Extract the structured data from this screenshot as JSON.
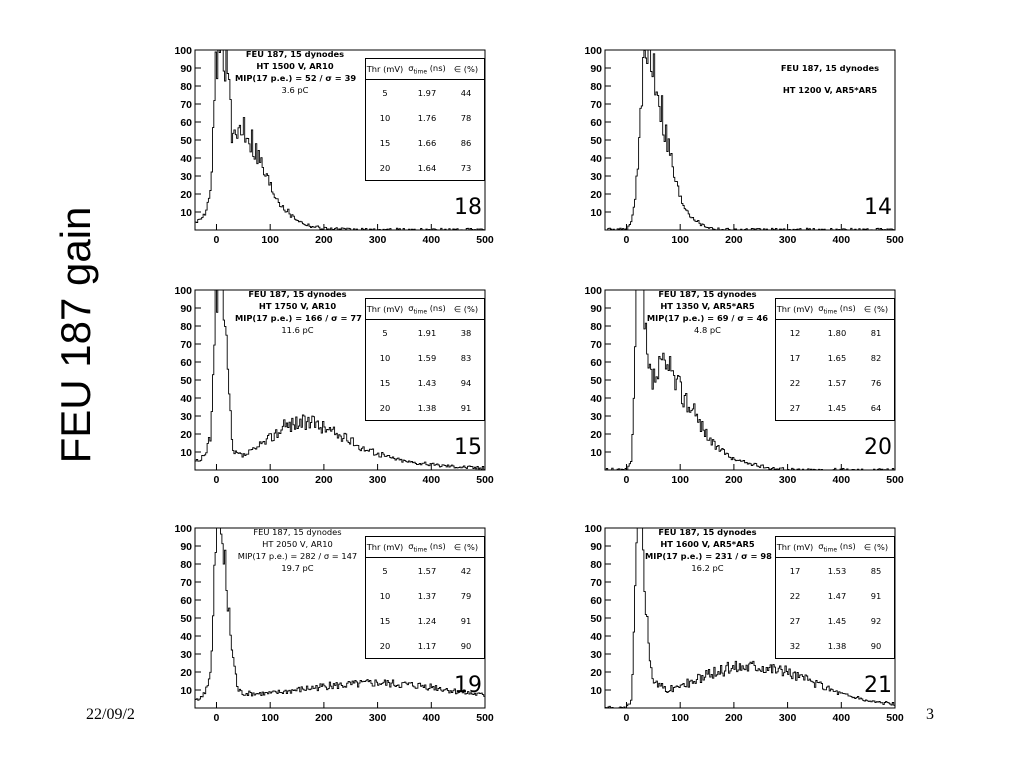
{
  "side_title": "FEU 187 gain",
  "footer": {
    "date": "22/09/2",
    "page": "3"
  },
  "axes": {
    "x_ticks": [
      "0",
      "100",
      "200",
      "300",
      "400",
      "500"
    ],
    "y_ticks": [
      "10",
      "20",
      "30",
      "40",
      "50",
      "60",
      "70",
      "80",
      "90",
      "100"
    ],
    "xlim": [
      -40,
      500
    ],
    "ylim": [
      0,
      100
    ]
  },
  "table_header": {
    "thr": "Thr (mV)",
    "sigma": "σ",
    "sigma_sub": "time",
    "sigma_unit": " (ns)",
    "eff": "∈ (%)"
  },
  "chart_data": [
    {
      "type": "histogram",
      "panel_number": "18",
      "info": {
        "title": "FEU 187, 15 dynodes",
        "line2": "HT 1500 V, AR10",
        "line3": "MIP(17 p.e.) = 52 / σ = 39",
        "line4": "3.6 pC"
      },
      "table": [
        [
          "5",
          "1.97",
          "44"
        ],
        [
          "10",
          "1.76",
          "78"
        ],
        [
          "15",
          "1.66",
          "86"
        ],
        [
          "20",
          "1.64",
          "73"
        ]
      ],
      "peak_x": 52,
      "peak_height": 60,
      "peak_width": 28,
      "x": [
        -30,
        -20,
        -10,
        0,
        10,
        20,
        30,
        40,
        50,
        60,
        80,
        100,
        120,
        140,
        160,
        180,
        200,
        250,
        300,
        400,
        500
      ],
      "values": [
        5,
        10,
        20,
        100,
        100,
        100,
        45,
        55,
        60,
        55,
        40,
        25,
        15,
        8,
        4,
        2,
        1,
        0,
        0,
        0,
        0
      ]
    },
    {
      "type": "histogram",
      "panel_number": "14",
      "info": {
        "title": "FEU 187, 15 dynodes",
        "line2": "HT 1200 V, AR5*AR5",
        "line3": "",
        "line4": ""
      },
      "table": [],
      "x": [
        -30,
        -20,
        -10,
        0,
        10,
        20,
        30,
        40,
        50,
        60,
        70,
        80,
        90,
        100,
        120,
        140,
        160,
        200,
        300,
        400,
        500
      ],
      "values": [
        0,
        0,
        0,
        0,
        5,
        30,
        80,
        100,
        95,
        80,
        60,
        45,
        30,
        18,
        8,
        3,
        1,
        0,
        0,
        0,
        0
      ]
    },
    {
      "type": "histogram",
      "panel_number": "15",
      "info": {
        "title": "FEU 187, 15 dynodes",
        "line2": "HT 1750 V, AR10",
        "line3": "MIP(17 p.e.) = 166 / σ = 77",
        "line4": "11.6 pC"
      },
      "table": [
        [
          "5",
          "1.91",
          "38"
        ],
        [
          "10",
          "1.59",
          "83"
        ],
        [
          "15",
          "1.43",
          "94"
        ],
        [
          "20",
          "1.38",
          "91"
        ]
      ],
      "x": [
        -30,
        -20,
        -10,
        0,
        10,
        20,
        30,
        50,
        75,
        100,
        125,
        150,
        175,
        200,
        225,
        250,
        275,
        300,
        350,
        400,
        450,
        500
      ],
      "values": [
        5,
        10,
        20,
        100,
        100,
        60,
        10,
        8,
        12,
        18,
        24,
        27,
        26,
        24,
        20,
        16,
        12,
        9,
        5,
        3,
        2,
        1
      ]
    },
    {
      "type": "histogram",
      "panel_number": "20",
      "info": {
        "title": "FEU 187, 15 dynodes",
        "line2": "HT 1350 V, AR5*AR5",
        "line3": "MIP(17 p.e.) = 69 / σ = 46",
        "line4": "4.8 pC"
      },
      "table": [
        [
          "12",
          "1.80",
          "81"
        ],
        [
          "17",
          "1.65",
          "82"
        ],
        [
          "22",
          "1.57",
          "76"
        ],
        [
          "27",
          "1.45",
          "64"
        ]
      ],
      "x": [
        -30,
        -20,
        -10,
        0,
        10,
        20,
        30,
        40,
        50,
        60,
        70,
        80,
        100,
        120,
        140,
        160,
        180,
        200,
        250,
        300,
        400,
        500
      ],
      "values": [
        0,
        0,
        0,
        0,
        5,
        100,
        100,
        55,
        50,
        55,
        58,
        55,
        45,
        35,
        25,
        15,
        10,
        6,
        2,
        0,
        0,
        0
      ]
    },
    {
      "type": "histogram",
      "panel_number": "19",
      "info": {
        "title": "FEU 187, 15 dynodes",
        "line2": "HT 2050 V, AR10",
        "line3": "MIP(17 p.e.) = 282 / σ = 147",
        "line4": "19.7 pC"
      },
      "table": [
        [
          "5",
          "1.57",
          "42"
        ],
        [
          "10",
          "1.37",
          "79"
        ],
        [
          "15",
          "1.24",
          "91"
        ],
        [
          "20",
          "1.17",
          "90"
        ]
      ],
      "x": [
        -30,
        -20,
        -10,
        0,
        10,
        20,
        30,
        40,
        50,
        100,
        150,
        200,
        250,
        300,
        350,
        400,
        450,
        500
      ],
      "values": [
        5,
        10,
        20,
        100,
        100,
        60,
        30,
        10,
        8,
        8,
        10,
        12,
        13,
        14,
        13,
        12,
        9,
        7
      ]
    },
    {
      "type": "histogram",
      "panel_number": "21",
      "info": {
        "title": "FEU 187, 15 dynodes",
        "line2": "HT 1600 V, AR5*AR5",
        "line3": "MIP(17 p.e.) = 231 / σ = 98",
        "line4": "16.2 pC"
      },
      "table": [
        [
          "17",
          "1.53",
          "85"
        ],
        [
          "22",
          "1.47",
          "91"
        ],
        [
          "27",
          "1.45",
          "92"
        ],
        [
          "32",
          "1.38",
          "90"
        ]
      ],
      "x": [
        -30,
        -20,
        -10,
        0,
        10,
        20,
        30,
        40,
        50,
        75,
        100,
        150,
        200,
        250,
        300,
        350,
        400,
        450,
        500
      ],
      "values": [
        0,
        0,
        0,
        0,
        5,
        100,
        100,
        40,
        15,
        10,
        12,
        18,
        23,
        24,
        20,
        14,
        8,
        4,
        2
      ]
    }
  ]
}
